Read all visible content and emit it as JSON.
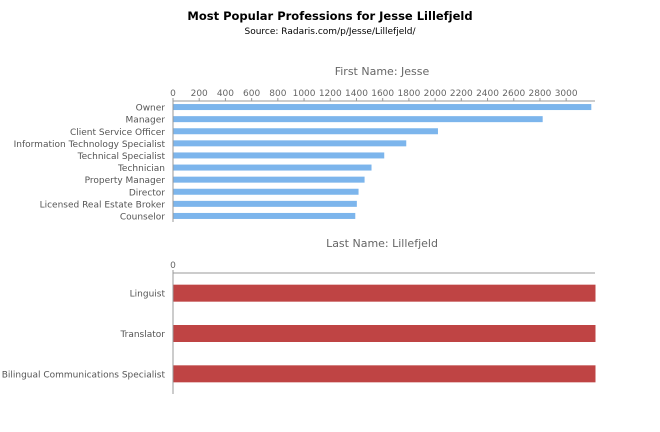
{
  "title": "Most Popular Professions for Jesse Lillefjeld",
  "subtitle": "Source: Radaris.com/p/Jesse/Lillefjeld/",
  "chart_data": [
    {
      "type": "bar",
      "orientation": "horizontal",
      "title": "First Name: Jesse",
      "categories": [
        "Owner",
        "Manager",
        "Client Service Officer",
        "Information Technology Specialist",
        "Technical Specialist",
        "Technician",
        "Property Manager",
        "Director",
        "Licensed Real Estate Broker",
        "Counselor"
      ],
      "values": [
        3188,
        2817,
        2018,
        1776,
        1608,
        1511,
        1458,
        1412,
        1399,
        1387
      ],
      "xlim": [
        0,
        3220
      ],
      "xticks": [
        0,
        200,
        400,
        600,
        800,
        1000,
        1200,
        1400,
        1600,
        1800,
        2000,
        2200,
        2400,
        2600,
        2800,
        3000
      ],
      "color": "#7cb5ec",
      "axis_position": "top",
      "grid": false
    },
    {
      "type": "bar",
      "orientation": "horizontal",
      "title": "Last Name: Lillefjeld",
      "categories": [
        "Linguist",
        "Translator",
        "Bilingual Communications Specialist"
      ],
      "values": [
        1,
        1,
        1
      ],
      "xlim": [
        0,
        1
      ],
      "xticks": [
        0
      ],
      "color": "#bf4444",
      "axis_position": "top",
      "grid": false
    }
  ]
}
